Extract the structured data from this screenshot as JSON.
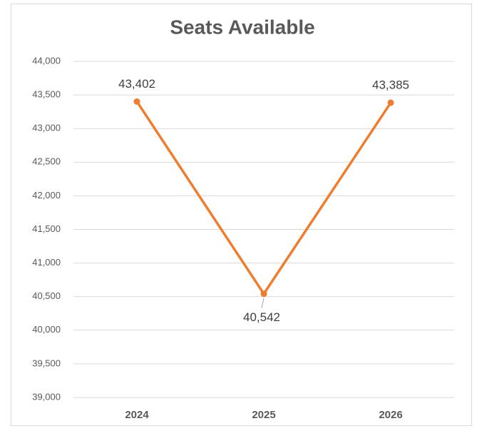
{
  "chart_data": {
    "type": "line",
    "title": "Seats Available",
    "categories": [
      "2024",
      "2025",
      "2026"
    ],
    "values": [
      43402,
      40542,
      43385
    ],
    "value_labels": [
      "43,402",
      "40,542",
      "43,385"
    ],
    "color": "#ed7d31",
    "ylim": [
      39000,
      44000
    ],
    "yticks": [
      {
        "value": 39000,
        "label": "39,000"
      },
      {
        "value": 39500,
        "label": "39,500"
      },
      {
        "value": 40000,
        "label": "40,000"
      },
      {
        "value": 40500,
        "label": "40,500"
      },
      {
        "value": 41000,
        "label": "41,000"
      },
      {
        "value": 41500,
        "label": "41,500"
      },
      {
        "value": 42000,
        "label": "42,000"
      },
      {
        "value": 42500,
        "label": "42,500"
      },
      {
        "value": 43000,
        "label": "43,000"
      },
      {
        "value": 43500,
        "label": "43,500"
      },
      {
        "value": 44000,
        "label": "44,000"
      }
    ],
    "grid": true
  }
}
